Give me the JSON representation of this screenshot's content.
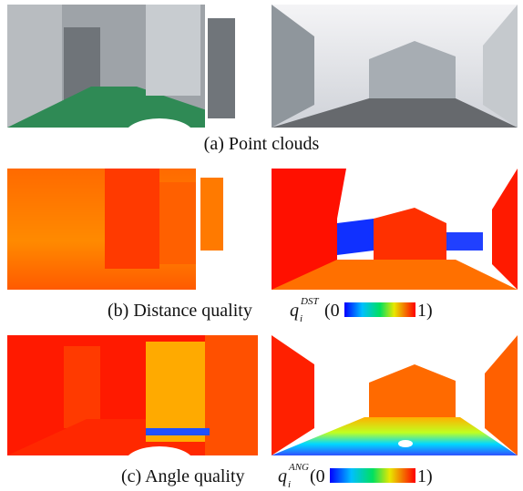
{
  "panels": [
    {
      "label": "(a) Point clouds"
    },
    {
      "label": "(b) Distance quality",
      "symbol": "q",
      "subscript": "i",
      "superscript": "DST",
      "scale_min": "(0",
      "scale_max": "1)"
    },
    {
      "label": "(c) Angle quality",
      "symbol": "q",
      "subscript": "i",
      "superscript": "ANG",
      "scale_min": "(0",
      "scale_max": "1)"
    }
  ]
}
